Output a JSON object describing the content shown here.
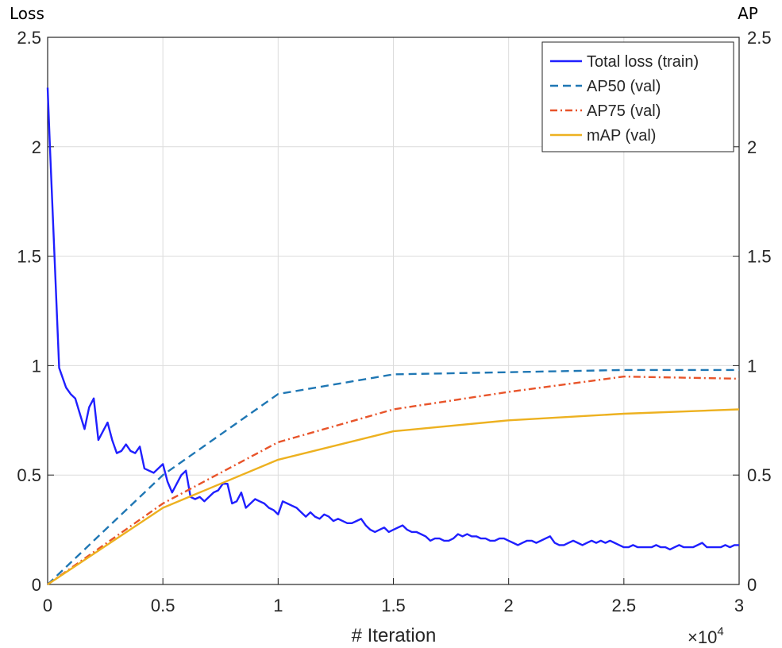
{
  "chart_data": {
    "type": "line",
    "left_axis_label": "Loss",
    "right_axis_label": "AP",
    "xlabel": "# Iteration",
    "x_multiplier": "×10",
    "x_multiplier_exp": "4",
    "xlim": [
      0,
      3
    ],
    "ylim_left": [
      0,
      2.5
    ],
    "ylim_right": [
      0,
      2.5
    ],
    "xticks": [
      "0",
      "0.5",
      "1",
      "1.5",
      "2",
      "2.5",
      "3"
    ],
    "yticks_left": [
      "0",
      "0.5",
      "1",
      "1.5",
      "2",
      "2.5"
    ],
    "yticks_right": [
      "0",
      "0.5",
      "1",
      "1.5",
      "2",
      "2.5"
    ],
    "grid": true,
    "legend_position": "top-right",
    "series": [
      {
        "name": "Total loss (train)",
        "color": "#1f1fff",
        "style": "solid",
        "x": [
          0,
          0.01,
          0.05,
          0.08,
          0.1,
          0.12,
          0.14,
          0.16,
          0.18,
          0.2,
          0.22,
          0.24,
          0.26,
          0.28,
          0.3,
          0.32,
          0.34,
          0.36,
          0.38,
          0.4,
          0.42,
          0.44,
          0.46,
          0.48,
          0.5,
          0.52,
          0.54,
          0.56,
          0.58,
          0.6,
          0.62,
          0.64,
          0.66,
          0.68,
          0.7,
          0.72,
          0.74,
          0.76,
          0.78,
          0.8,
          0.82,
          0.84,
          0.86,
          0.88,
          0.9,
          0.92,
          0.94,
          0.96,
          0.98,
          1.0,
          1.02,
          1.04,
          1.06,
          1.08,
          1.1,
          1.12,
          1.14,
          1.16,
          1.18,
          1.2,
          1.22,
          1.24,
          1.26,
          1.28,
          1.3,
          1.32,
          1.34,
          1.36,
          1.38,
          1.4,
          1.42,
          1.44,
          1.46,
          1.48,
          1.5,
          1.52,
          1.54,
          1.56,
          1.58,
          1.6,
          1.62,
          1.64,
          1.66,
          1.68,
          1.7,
          1.72,
          1.74,
          1.76,
          1.78,
          1.8,
          1.82,
          1.84,
          1.86,
          1.88,
          1.9,
          1.92,
          1.94,
          1.96,
          1.98,
          2.0,
          2.02,
          2.04,
          2.06,
          2.08,
          2.1,
          2.12,
          2.14,
          2.16,
          2.18,
          2.2,
          2.22,
          2.24,
          2.26,
          2.28,
          2.3,
          2.32,
          2.34,
          2.36,
          2.38,
          2.4,
          2.42,
          2.44,
          2.46,
          2.48,
          2.5,
          2.52,
          2.54,
          2.56,
          2.58,
          2.6,
          2.62,
          2.64,
          2.66,
          2.68,
          2.7,
          2.72,
          2.74,
          2.76,
          2.78,
          2.8,
          2.82,
          2.84,
          2.86,
          2.88,
          2.9,
          2.92,
          2.94,
          2.96,
          2.98,
          3.0
        ],
        "values": [
          2.27,
          2.0,
          0.99,
          0.9,
          0.87,
          0.85,
          0.78,
          0.71,
          0.81,
          0.85,
          0.66,
          0.7,
          0.74,
          0.66,
          0.6,
          0.61,
          0.64,
          0.61,
          0.6,
          0.63,
          0.53,
          0.52,
          0.51,
          0.53,
          0.55,
          0.47,
          0.42,
          0.46,
          0.5,
          0.52,
          0.4,
          0.39,
          0.4,
          0.38,
          0.4,
          0.42,
          0.43,
          0.46,
          0.46,
          0.37,
          0.38,
          0.42,
          0.35,
          0.37,
          0.39,
          0.38,
          0.37,
          0.35,
          0.34,
          0.32,
          0.38,
          0.37,
          0.36,
          0.35,
          0.33,
          0.31,
          0.33,
          0.31,
          0.3,
          0.32,
          0.31,
          0.29,
          0.3,
          0.29,
          0.28,
          0.28,
          0.29,
          0.3,
          0.27,
          0.25,
          0.24,
          0.25,
          0.26,
          0.24,
          0.25,
          0.26,
          0.27,
          0.25,
          0.24,
          0.24,
          0.23,
          0.22,
          0.2,
          0.21,
          0.21,
          0.2,
          0.2,
          0.21,
          0.23,
          0.22,
          0.23,
          0.22,
          0.22,
          0.21,
          0.21,
          0.2,
          0.2,
          0.21,
          0.21,
          0.2,
          0.19,
          0.18,
          0.19,
          0.2,
          0.2,
          0.19,
          0.2,
          0.21,
          0.22,
          0.19,
          0.18,
          0.18,
          0.19,
          0.2,
          0.19,
          0.18,
          0.19,
          0.2,
          0.19,
          0.2,
          0.19,
          0.2,
          0.19,
          0.18,
          0.17,
          0.17,
          0.18,
          0.17,
          0.17,
          0.17,
          0.17,
          0.18,
          0.17,
          0.17,
          0.16,
          0.17,
          0.18,
          0.17,
          0.17,
          0.17,
          0.18,
          0.19,
          0.17,
          0.17,
          0.17,
          0.17,
          0.18,
          0.17,
          0.18,
          0.18
        ]
      },
      {
        "name": "AP50 (val)",
        "color": "#1f77b4",
        "style": "dashed",
        "x": [
          0,
          0.5,
          1,
          1.5,
          2,
          2.5,
          3
        ],
        "values": [
          0,
          0.5,
          0.87,
          0.96,
          0.97,
          0.98,
          0.98
        ]
      },
      {
        "name": "AP75 (val)",
        "color": "#e8542a",
        "style": "dashdot",
        "x": [
          0,
          0.5,
          1,
          1.5,
          2,
          2.5,
          3
        ],
        "values": [
          0,
          0.37,
          0.65,
          0.8,
          0.88,
          0.95,
          0.94
        ]
      },
      {
        "name": "mAP (val)",
        "color": "#edb120",
        "style": "solid",
        "x": [
          0,
          0.5,
          1,
          1.5,
          2,
          2.5,
          3
        ],
        "values": [
          0,
          0.35,
          0.57,
          0.7,
          0.75,
          0.78,
          0.8
        ]
      }
    ]
  }
}
